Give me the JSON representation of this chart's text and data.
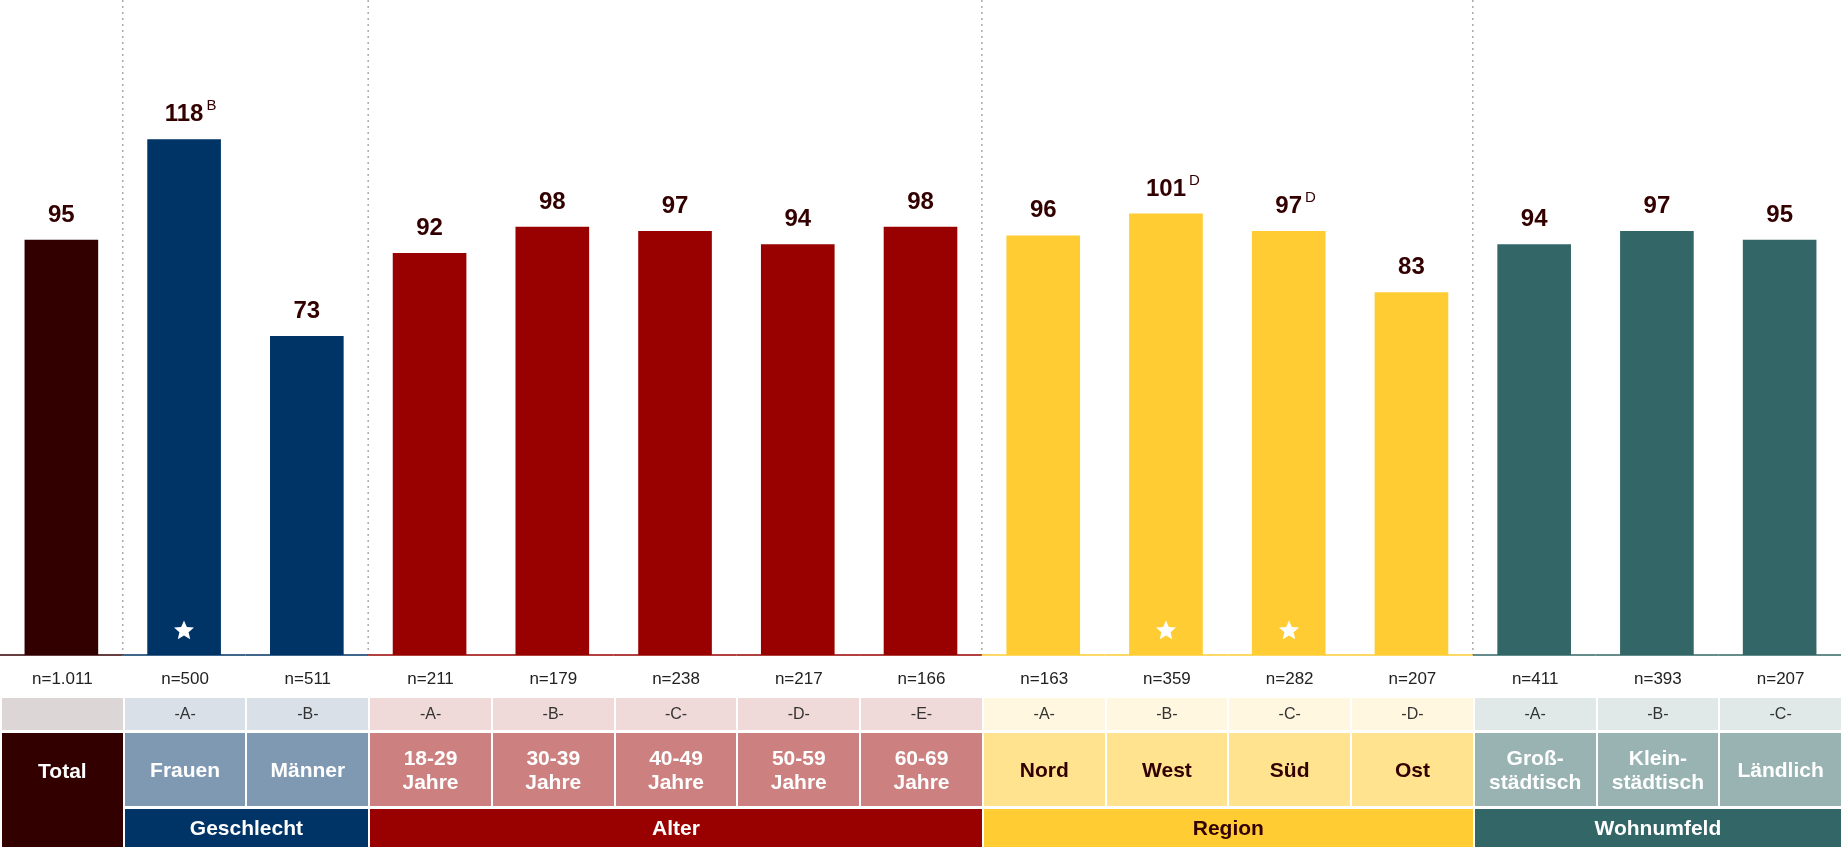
{
  "chart_data": {
    "type": "bar",
    "categories": [
      "Total",
      "Frauen",
      "Männer",
      "18-29 Jahre",
      "30-39 Jahre",
      "40-49 Jahre",
      "50-59 Jahre",
      "60-69 Jahre",
      "Nord",
      "West",
      "Süd",
      "Ost",
      "Groß-städtisch",
      "Klein-städtisch",
      "Ländlich"
    ],
    "values": [
      95,
      118,
      73,
      92,
      98,
      97,
      94,
      98,
      96,
      101,
      97,
      83,
      94,
      97,
      95
    ],
    "colors": [
      "#330000",
      "#003366",
      "#003366",
      "#990000",
      "#990000",
      "#990000",
      "#990000",
      "#990000",
      "#ffcc33",
      "#ffcc33",
      "#ffcc33",
      "#ffcc33",
      "#336666",
      "#336666",
      "#336666"
    ],
    "value_labels": [
      "95",
      "118$^{B}$",
      "73",
      "92",
      "98",
      "97",
      "94",
      "98",
      "96",
      "101$^{D}$",
      "97$^{D}$",
      "83",
      "94",
      "97",
      "95"
    ],
    "annotations": [
      "n=1.011",
      "n=500",
      "n=511",
      "n=211",
      "n=179",
      "n=238",
      "n=217",
      "n=166",
      "n=163",
      "n=359",
      "n=282",
      "n=207",
      "n=411",
      "n=393",
      "n=207",
      "-A-",
      "-B-",
      "-A-",
      "-B-",
      "-C-",
      "-D-",
      "-E-",
      "-A-",
      "-B-",
      "-C-",
      "-D-",
      "-A-",
      "-B-",
      "-C-",
      "Geschlecht",
      "Alter",
      "Region",
      "Wohnumfeld"
    ]
  }
}
